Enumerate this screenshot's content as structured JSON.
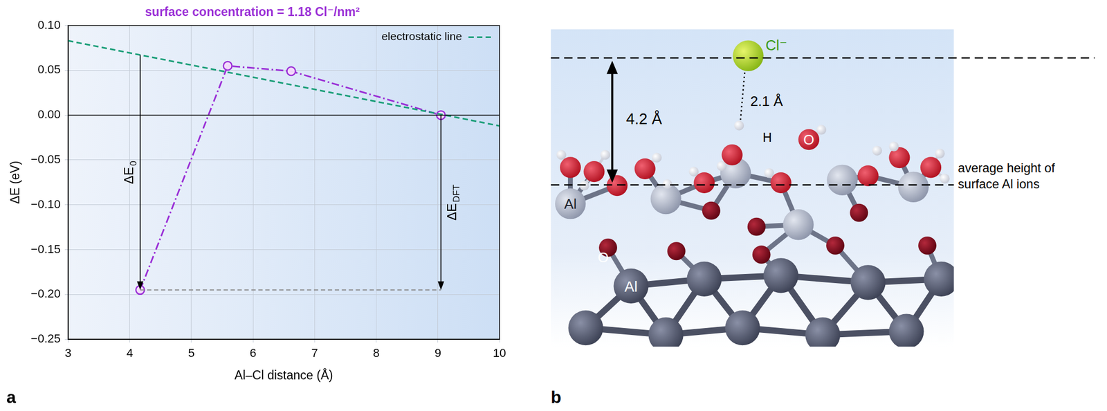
{
  "panel_labels": [
    "a",
    "b"
  ],
  "chart_data": {
    "type": "line",
    "title": "surface concentration = 1.18 Cl⁻/nm²",
    "x_label": "Al–Cl distance (Å)",
    "y_label": "ΔE (eV)",
    "xlim": [
      3,
      10
    ],
    "xticks": [
      3,
      4,
      5,
      6,
      7,
      8,
      9,
      10
    ],
    "ylim": [
      -0.25,
      0.1
    ],
    "yticks": [
      {
        "value": -0.25,
        "label": "−0.25"
      },
      {
        "value": -0.2,
        "label": "−0.20"
      },
      {
        "value": -0.15,
        "label": "−0.15"
      },
      {
        "value": -0.1,
        "label": "−0.10"
      },
      {
        "value": -0.05,
        "label": "−0.05"
      },
      {
        "value": 0,
        "label": "0.00"
      },
      0.05,
      {
        "value": 0.1,
        "label": "0.10"
      }
    ],
    "grid": true,
    "legend": "top right",
    "series": [
      {
        "name": "electrostatic line",
        "color": "#1a9e78",
        "line_style": "dashed",
        "marker": "none",
        "x": [
          3,
          10
        ],
        "values": [
          0.083,
          -0.012
        ]
      },
      {
        "color": "#9a2fd6",
        "line_style": "dashdot",
        "marker": "open_circle",
        "x": [
          4.17,
          5.59,
          6.62,
          9.05
        ],
        "values": [
          -0.195,
          0.055,
          0.049,
          0.0
        ]
      }
    ],
    "annotations": [
      {
        "type": "arrow",
        "text": "ΔE",
        "subscript": "0",
        "x": 4.17,
        "from": 0.067,
        "to": -0.195
      },
      {
        "type": "arrow",
        "text": "ΔE",
        "subscript": "DFT",
        "x": 9.05,
        "from": 0,
        "to": -0.195
      },
      {
        "type": "dashed_line",
        "y": -0.195,
        "x": [
          4.17,
          9.05
        ]
      },
      {
        "type": "hline",
        "y": 0
      }
    ]
  },
  "diagram": {
    "labels": {
      "chloride": "Cl⁻",
      "hbond": "2.1 Å",
      "height": "4.2 Å",
      "hydrogen": "H",
      "oxygen_top": "O",
      "al_surface": "Al",
      "oxygen_sub": "O",
      "al_bulk": "Al",
      "reference": "average height of surface Al ions"
    }
  }
}
